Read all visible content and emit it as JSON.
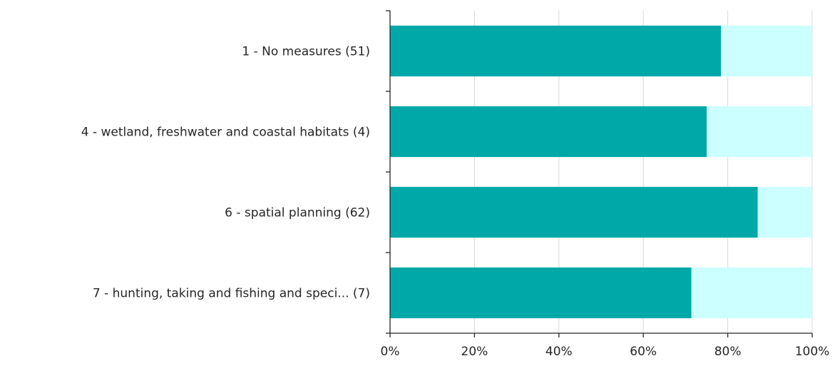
{
  "chart_data": {
    "type": "bar",
    "orientation": "horizontal",
    "stacked": true,
    "categories": [
      "1 - No measures (51)",
      "4 - wetland, freshwater and coastal habitats (4)",
      "6 - spatial planning (62)",
      "7 - hunting, taking and fishing and speci... (7)"
    ],
    "series": [
      {
        "values": [
          78.4,
          75,
          87.1,
          71.4
        ],
        "color": "#00a8a8"
      },
      {
        "values": [
          21.6,
          25,
          12.9,
          28.6
        ],
        "color": "#ccffff"
      }
    ],
    "xlim": [
      0,
      100
    ],
    "xticks": [
      "0%",
      "20%",
      "40%",
      "60%",
      "80%",
      "100%"
    ],
    "grid": "vertical",
    "legend": "none",
    "title": "",
    "xlabel": "",
    "ylabel": ""
  }
}
